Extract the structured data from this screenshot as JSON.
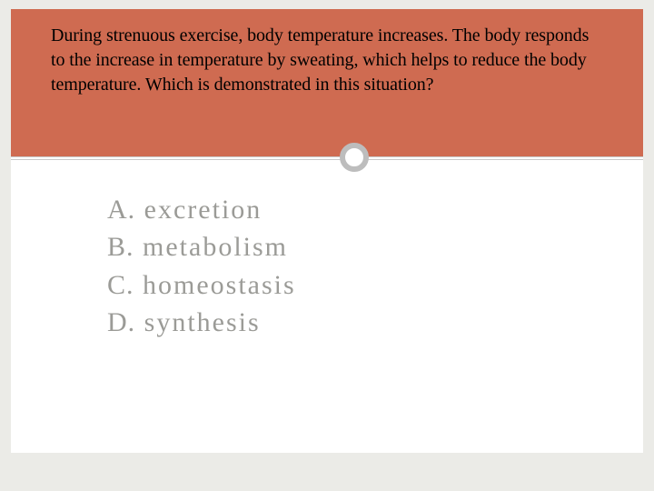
{
  "slide": {
    "question": "During strenuous exercise, body temperature increases. The body responds to the increase in temperature by sweating, which helps to reduce the body temperature. Which is demonstrated in this situation?",
    "answers": [
      {
        "letter": "A.",
        "text": " excretion"
      },
      {
        "letter": "B.",
        "text": " metabolism"
      },
      {
        "letter": "C.",
        "text": " homeostasis"
      },
      {
        "letter": "D.",
        "text": "  synthesis"
      }
    ]
  },
  "style": {
    "header_bg": "#cf6b51",
    "page_bg": "#ebebe7",
    "answer_color": "#9b9b97",
    "question_color": "#000000",
    "ring_border": "#bdbdbd",
    "question_fontsize": 20,
    "answer_fontsize": 30
  }
}
